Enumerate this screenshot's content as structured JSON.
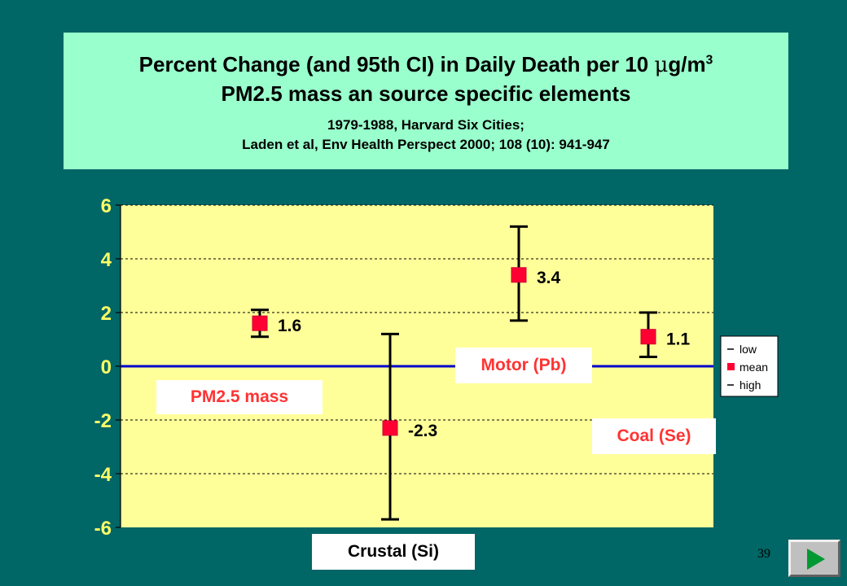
{
  "title": {
    "line1_a": "Percent Change (and 95th CI) in Daily Death per 10 ",
    "line1_mu": "μ",
    "line1_b": "g/m",
    "line1_sup": "3",
    "line2": "PM2.5 mass an source specific elements",
    "line3": "1979-1988, Harvard Six Cities;",
    "line4": "Laden et al, Env Health Perspect 2000; 108 (10): 941-947"
  },
  "category_labels": {
    "pm25": "PM2.5 mass",
    "crustal": "Crustal (Si)",
    "motor": "Motor (Pb)",
    "coal": "Coal (Se)"
  },
  "page_number": "39",
  "colors": {
    "background": "#006666",
    "title_box": "#99ffcc",
    "plot_area": "#ffff99",
    "mean_marker": "#ff0033",
    "zero_line": "#0000cc",
    "category_text": "#ff3333",
    "next_arrow": "#009933"
  },
  "chart_data": {
    "type": "scatter",
    "subtype": "error-bar",
    "categories": [
      "PM2.5 mass",
      "Crustal (Si)",
      "Motor (Pb)",
      "Coal (Se)"
    ],
    "series": [
      {
        "name": "low",
        "values": [
          1.1,
          -5.7,
          1.7,
          0.35
        ]
      },
      {
        "name": "mean",
        "values": [
          1.6,
          -2.3,
          3.4,
          1.1
        ]
      },
      {
        "name": "high",
        "values": [
          2.1,
          1.2,
          5.2,
          2.0
        ]
      }
    ],
    "data_labels": [
      "1.6",
      "-2.3",
      "3.4",
      "1.1"
    ],
    "ylim": [
      -6,
      6
    ],
    "yticks": [
      -6,
      -4,
      -2,
      0,
      2,
      4,
      6
    ],
    "ytick_labels": [
      "-6",
      "-4",
      "-2",
      "0",
      "2",
      "4",
      "6"
    ],
    "grid": "horizontal dashed",
    "legend_position": "right",
    "legend": [
      "low",
      "mean",
      "high"
    ]
  }
}
